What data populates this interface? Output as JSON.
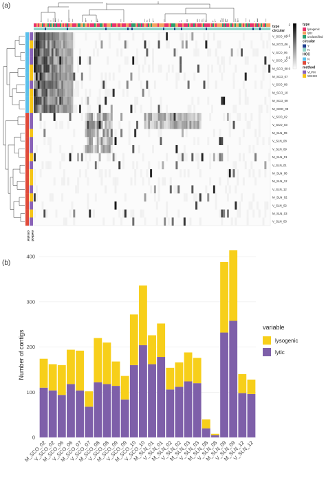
{
  "panel_a_label": "(a)",
  "panel_b_label": "(b)",
  "heatmap": {
    "annotation_rows": [
      "type",
      "circular"
    ],
    "row_annotation_labels": [
      "circular",
      "method"
    ],
    "rows": [
      "V_SCO_09",
      "M_SCO_06",
      "V_SCO_06",
      "V_SCO_10",
      "M_SCO_08",
      "M_SCO_07",
      "V_SCO_08",
      "M_SCO_10",
      "M_SCO_09",
      "M_GOO_09",
      "V_SCO_02",
      "V_SCO_03",
      "M_SLN_09",
      "V_SLN_08",
      "V_SLN_09",
      "M_SLN_01",
      "V_SLN_01",
      "M_SLN_08",
      "M_SLN_12",
      "V_SLN_12",
      "M_SLN_02",
      "V_SLN_02",
      "M_SLN_03",
      "V_SLN_03"
    ],
    "colorbar_ticks": [
      "2",
      "1.5",
      "1",
      "0.5",
      "0"
    ],
    "legends": [
      {
        "title": "type",
        "items": [
          {
            "label": "lysogenic",
            "color": "#e8336d"
          },
          {
            "label": "lytic",
            "color": "#f4a261"
          },
          {
            "label": "unclassified",
            "color": "#2a9d6f"
          }
        ]
      },
      {
        "title": "circular",
        "items": [
          {
            "label": "Y",
            "color": "#1f3f8f"
          },
          {
            "label": "N",
            "color": "#8fd3c7"
          }
        ]
      },
      {
        "title": "HCC",
        "items": [
          {
            "label": "N",
            "color": "#5bc0eb"
          },
          {
            "label": "Y",
            "color": "#e04b3a"
          }
        ]
      },
      {
        "title": "method",
        "items": [
          {
            "label": "VLPM",
            "color": "#8a63b8"
          },
          {
            "label": "WGSM",
            "color": "#f5c518"
          }
        ]
      }
    ]
  },
  "chart_data": {
    "type": "bar",
    "stacked": true,
    "categories": [
      "M_SCO_02",
      "V_SCO_02",
      "M_SCO_06",
      "V_SCO_06",
      "M_SCO_07",
      "V_SCO_07",
      "M_SCO_08",
      "V_SCO_08",
      "M_SCO_09",
      "V_SCO_09",
      "M_SCO_10",
      "V_SCO_10",
      "M_SLN_01",
      "V_SLN_01",
      "M_SLN_02",
      "V_SLN_02",
      "M_SLN_03",
      "V_SLN_03",
      "M_SLN_08",
      "V_SLN_08",
      "M_SLN_09",
      "V_SLN_09",
      "M_SLN_12",
      "V_SLN_12"
    ],
    "series": [
      {
        "name": "lytic",
        "color": "#7e5fa9",
        "values": [
          110,
          104,
          94,
          118,
          104,
          68,
          122,
          118,
          114,
          84,
          160,
          204,
          162,
          178,
          106,
          112,
          124,
          120,
          20,
          5,
          232,
          258,
          98,
          96
        ]
      },
      {
        "name": "lysogenic",
        "color": "#f7cf1a",
        "values": [
          64,
          58,
          66,
          76,
          88,
          34,
          98,
          92,
          54,
          52,
          112,
          132,
          64,
          74,
          48,
          54,
          64,
          56,
          20,
          3,
          156,
          156,
          42,
          32
        ]
      }
    ],
    "yticks": [
      0,
      100,
      200,
      300,
      400
    ],
    "ylim": [
      0,
      420
    ],
    "ylabel": "Number of contigs",
    "xlabel": "",
    "legend_title": "variable",
    "legend_position": "right"
  }
}
